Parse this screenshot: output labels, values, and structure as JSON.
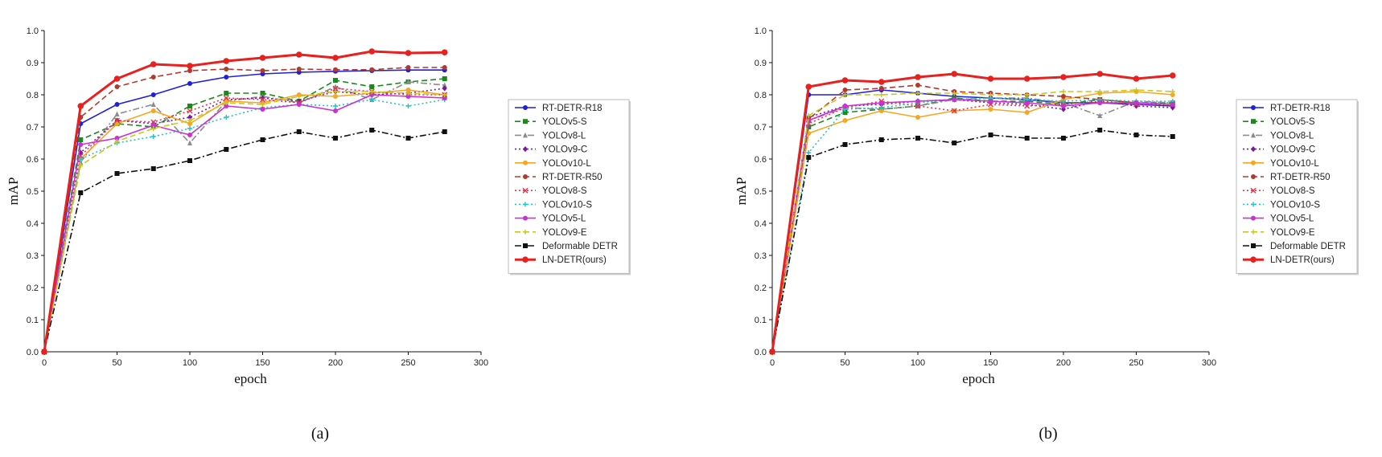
{
  "chart_data": [
    {
      "type": "line",
      "caption": "(a)",
      "xlabel": "epoch",
      "ylabel": "mAP",
      "xlim": [
        0,
        300
      ],
      "ylim": [
        0.0,
        1.0
      ],
      "xticks": [
        0,
        50,
        100,
        150,
        200,
        250,
        300
      ],
      "yticks": [
        0.0,
        0.1,
        0.2,
        0.3,
        0.4,
        0.5,
        0.6,
        0.7,
        0.8,
        0.9,
        1.0
      ],
      "legend_position": "right",
      "x": [
        0,
        25,
        50,
        75,
        100,
        125,
        150,
        175,
        200,
        225,
        250,
        275
      ],
      "series": [
        {
          "name": "RT-DETR-R18",
          "color": "#1f1fdd",
          "dash": "solid",
          "marker": "circle",
          "values": [
            0.0,
            0.71,
            0.77,
            0.8,
            0.835,
            0.855,
            0.865,
            0.87,
            0.873,
            0.875,
            0.877,
            0.877
          ]
        },
        {
          "name": "YOLOv5-S",
          "color": "#1a8a1a",
          "dash": "dashed",
          "marker": "square",
          "values": [
            0.0,
            0.66,
            0.71,
            0.7,
            0.765,
            0.805,
            0.805,
            0.78,
            0.845,
            0.825,
            0.84,
            0.85
          ]
        },
        {
          "name": "YOLOv8-L",
          "color": "#8c8c8c",
          "dash": "dashdot",
          "marker": "triangle",
          "values": [
            0.0,
            0.59,
            0.74,
            0.77,
            0.65,
            0.78,
            0.795,
            0.775,
            0.825,
            0.785,
            0.84,
            0.83
          ]
        },
        {
          "name": "YOLOv9-C",
          "color": "#7a1a9a",
          "dash": "dotted",
          "marker": "diamond",
          "values": [
            0.0,
            0.62,
            0.72,
            0.71,
            0.73,
            0.785,
            0.79,
            0.78,
            0.81,
            0.8,
            0.805,
            0.82
          ]
        },
        {
          "name": "YOLOv10-L",
          "color": "#f5a623",
          "dash": "solid",
          "marker": "circle",
          "values": [
            0.0,
            0.6,
            0.71,
            0.75,
            0.71,
            0.78,
            0.775,
            0.8,
            0.795,
            0.805,
            0.815,
            0.8
          ]
        },
        {
          "name": "RT-DETR-R50",
          "color": "#b03a2e",
          "dash": "dashed",
          "marker": "circle",
          "values": [
            0.0,
            0.73,
            0.825,
            0.855,
            0.875,
            0.88,
            0.875,
            0.88,
            0.878,
            0.878,
            0.885,
            0.885
          ]
        },
        {
          "name": "YOLOv8-S",
          "color": "#e8344a",
          "dash": "dotted",
          "marker": "x",
          "values": [
            0.0,
            0.61,
            0.72,
            0.715,
            0.75,
            0.79,
            0.785,
            0.775,
            0.82,
            0.81,
            0.8,
            0.8
          ]
        },
        {
          "name": "YOLOv10-S",
          "color": "#22c4c8",
          "dash": "dotted",
          "marker": "plus",
          "values": [
            0.0,
            0.6,
            0.65,
            0.67,
            0.695,
            0.73,
            0.76,
            0.77,
            0.765,
            0.785,
            0.765,
            0.785
          ]
        },
        {
          "name": "YOLOv5-L",
          "color": "#c832d2",
          "dash": "solid",
          "marker": "circle",
          "values": [
            0.0,
            0.645,
            0.665,
            0.705,
            0.675,
            0.765,
            0.755,
            0.77,
            0.75,
            0.8,
            0.795,
            0.79
          ]
        },
        {
          "name": "YOLOv9-E",
          "color": "#c8c81e",
          "dash": "dashed",
          "marker": "plus",
          "values": [
            0.0,
            0.58,
            0.655,
            0.695,
            0.72,
            0.775,
            0.77,
            0.795,
            0.81,
            0.81,
            0.805,
            0.8
          ]
        },
        {
          "name": "Deformable DETR",
          "color": "#111111",
          "dash": "dashdot",
          "marker": "square",
          "values": [
            0.0,
            0.495,
            0.555,
            0.57,
            0.595,
            0.63,
            0.66,
            0.685,
            0.665,
            0.69,
            0.665,
            0.685
          ]
        },
        {
          "name": "LN-DETR(ours)",
          "color": "#e8201e",
          "dash": "solid",
          "marker": "circle",
          "bold": true,
          "values": [
            0.0,
            0.765,
            0.85,
            0.895,
            0.89,
            0.905,
            0.915,
            0.925,
            0.915,
            0.935,
            0.93,
            0.932
          ]
        }
      ]
    },
    {
      "type": "line",
      "caption": "(b)",
      "xlabel": "epoch",
      "ylabel": "mAP",
      "xlim": [
        0,
        300
      ],
      "ylim": [
        0.0,
        1.0
      ],
      "xticks": [
        0,
        50,
        100,
        150,
        200,
        250,
        300
      ],
      "yticks": [
        0.0,
        0.1,
        0.2,
        0.3,
        0.4,
        0.5,
        0.6,
        0.7,
        0.8,
        0.9,
        1.0
      ],
      "legend_position": "right",
      "x": [
        0,
        25,
        50,
        75,
        100,
        125,
        150,
        175,
        200,
        225,
        250,
        275
      ],
      "series": [
        {
          "name": "RT-DETR-R18",
          "color": "#1f1fdd",
          "dash": "solid",
          "marker": "circle",
          "values": [
            0.0,
            0.8,
            0.8,
            0.815,
            0.805,
            0.795,
            0.79,
            0.785,
            0.775,
            0.775,
            0.77,
            0.765
          ]
        },
        {
          "name": "YOLOv5-S",
          "color": "#1a8a1a",
          "dash": "dashed",
          "marker": "square",
          "values": [
            0.0,
            0.7,
            0.745,
            0.755,
            0.765,
            0.79,
            0.78,
            0.78,
            0.77,
            0.785,
            0.775,
            0.775
          ]
        },
        {
          "name": "YOLOv8-L",
          "color": "#8c8c8c",
          "dash": "dashdot",
          "marker": "triangle",
          "values": [
            0.0,
            0.72,
            0.76,
            0.755,
            0.765,
            0.785,
            0.79,
            0.79,
            0.775,
            0.735,
            0.78,
            0.775
          ]
        },
        {
          "name": "YOLOv9-C",
          "color": "#7a1a9a",
          "dash": "dotted",
          "marker": "diamond",
          "values": [
            0.0,
            0.73,
            0.765,
            0.77,
            0.78,
            0.785,
            0.775,
            0.77,
            0.755,
            0.78,
            0.765,
            0.76
          ]
        },
        {
          "name": "YOLOv10-L",
          "color": "#f5a623",
          "dash": "solid",
          "marker": "circle",
          "values": [
            0.0,
            0.68,
            0.72,
            0.75,
            0.73,
            0.75,
            0.755,
            0.745,
            0.785,
            0.805,
            0.81,
            0.8
          ]
        },
        {
          "name": "RT-DETR-R50",
          "color": "#b03a2e",
          "dash": "dashed",
          "marker": "circle",
          "values": [
            0.0,
            0.725,
            0.815,
            0.82,
            0.83,
            0.81,
            0.805,
            0.8,
            0.795,
            0.785,
            0.775,
            0.77
          ]
        },
        {
          "name": "YOLOv8-S",
          "color": "#e8344a",
          "dash": "dotted",
          "marker": "x",
          "values": [
            0.0,
            0.71,
            0.76,
            0.78,
            0.765,
            0.75,
            0.77,
            0.765,
            0.77,
            0.78,
            0.77,
            0.77
          ]
        },
        {
          "name": "YOLOv10-S",
          "color": "#22c4c8",
          "dash": "dotted",
          "marker": "plus",
          "values": [
            0.0,
            0.62,
            0.755,
            0.76,
            0.775,
            0.785,
            0.79,
            0.785,
            0.78,
            0.785,
            0.78,
            0.78
          ]
        },
        {
          "name": "YOLOv5-L",
          "color": "#c832d2",
          "dash": "solid",
          "marker": "circle",
          "values": [
            0.0,
            0.72,
            0.765,
            0.775,
            0.78,
            0.785,
            0.78,
            0.775,
            0.765,
            0.775,
            0.775,
            0.77
          ]
        },
        {
          "name": "YOLOv9-E",
          "color": "#c8c81e",
          "dash": "dashed",
          "marker": "plus",
          "values": [
            0.0,
            0.735,
            0.8,
            0.8,
            0.805,
            0.805,
            0.8,
            0.8,
            0.81,
            0.81,
            0.815,
            0.81
          ]
        },
        {
          "name": "Deformable DETR",
          "color": "#111111",
          "dash": "dashdot",
          "marker": "square",
          "values": [
            0.0,
            0.605,
            0.645,
            0.66,
            0.665,
            0.65,
            0.675,
            0.665,
            0.665,
            0.69,
            0.675,
            0.67
          ]
        },
        {
          "name": "LN-DETR(ours)",
          "color": "#e8201e",
          "dash": "solid",
          "marker": "circle",
          "bold": true,
          "values": [
            0.0,
            0.825,
            0.845,
            0.84,
            0.855,
            0.865,
            0.85,
            0.85,
            0.855,
            0.865,
            0.85,
            0.86
          ]
        }
      ]
    }
  ]
}
